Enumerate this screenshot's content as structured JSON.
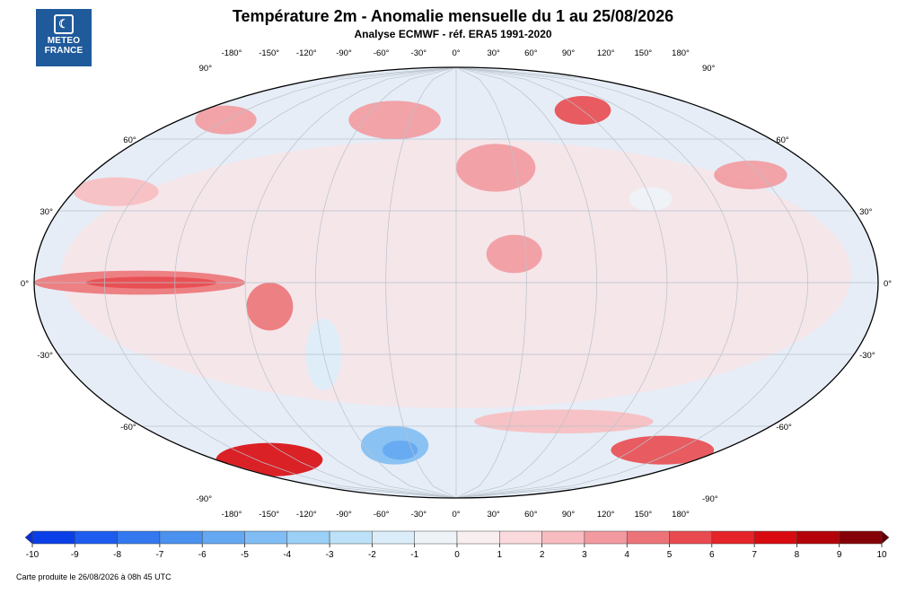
{
  "header": {
    "title": "Température 2m - Anomalie mensuelle du 1 au 25/08/2026",
    "subtitle": "Analyse ECMWF - réf. ERA5 1991-2020"
  },
  "logo": {
    "line1": "METEO",
    "line2": "FRANCE",
    "icon": "meteo-france-logo-icon"
  },
  "map": {
    "projection": "robinson-like elliptical world map",
    "lon_labels_top": [
      "-180°",
      "-150°",
      "-120°",
      "-90°",
      "-60°",
      "-30°",
      "0°",
      "30°",
      "60°",
      "90°",
      "120°",
      "150°",
      "180°"
    ],
    "lon_labels_bottom": [
      "-180°",
      "-150°",
      "-120°",
      "-90°",
      "-60°",
      "-30°",
      "0°",
      "30°",
      "60°",
      "90°",
      "120°",
      "150°",
      "180°"
    ],
    "lat_labels_left": [
      "90°",
      "60°",
      "30°",
      "0°",
      "-30°",
      "-60°",
      "-90°"
    ],
    "lat_labels_right": [
      "90°",
      "60°",
      "30°",
      "0°",
      "-30°",
      "-60°",
      "-90°"
    ],
    "lon_values": [
      -180,
      -150,
      -120,
      -90,
      -60,
      -30,
      0,
      30,
      60,
      90,
      120,
      150,
      180
    ],
    "lat_values": [
      90,
      60,
      30,
      0,
      -30,
      -60,
      -90
    ],
    "ocean_color": "#e6edf6",
    "anomaly_regions": [
      {
        "name": "east-pacific-warm",
        "lon": -135,
        "lat": 0,
        "rlon": 45,
        "rlat": 5,
        "level": 4
      },
      {
        "name": "east-pacific-core",
        "lon": -130,
        "lat": 0,
        "rlon": 28,
        "rlat": 2.5,
        "level": 5
      },
      {
        "name": "peru-coast-warm",
        "lon": -80,
        "lat": -10,
        "rlon": 10,
        "rlat": 10,
        "level": 4
      },
      {
        "name": "west-antarctic-warm",
        "lon": -140,
        "lat": -74,
        "rlon": 40,
        "rlat": 7,
        "level": 7
      },
      {
        "name": "east-antarctic-warm",
        "lon": 140,
        "lat": -70,
        "rlon": 35,
        "rlat": 6,
        "level": 5
      },
      {
        "name": "weddell-cold",
        "lon": -40,
        "lat": -68,
        "rlon": 22,
        "rlat": 8,
        "level": -5
      },
      {
        "name": "weddell-core",
        "lon": -38,
        "lat": -70,
        "rlon": 12,
        "rlat": 4,
        "level": -6
      },
      {
        "name": "siberia-warm",
        "lon": 90,
        "lat": 72,
        "rlon": 20,
        "rlat": 6,
        "level": 5
      },
      {
        "name": "europe-warm",
        "lon": 20,
        "lat": 48,
        "rlon": 20,
        "rlat": 10,
        "level": 3
      },
      {
        "name": "north-atlantic-warm",
        "lon": -40,
        "lat": 68,
        "rlon": 30,
        "rlat": 8,
        "level": 3
      },
      {
        "name": "alaska-warm",
        "lon": -150,
        "lat": 68,
        "rlon": 20,
        "rlat": 6,
        "level": 3
      },
      {
        "name": "north-pacific-warm",
        "lon": -160,
        "lat": 38,
        "rlon": 20,
        "rlat": 6,
        "level": 2
      },
      {
        "name": "sahel-warm",
        "lon": 25,
        "lat": 12,
        "rlon": 12,
        "rlat": 8,
        "level": 3
      },
      {
        "name": "south-america-cool",
        "lon": -60,
        "lat": -30,
        "rlon": 8,
        "rlat": 15,
        "level": -2
      },
      {
        "name": "tibet-cool",
        "lon": 90,
        "lat": 35,
        "rlon": 10,
        "rlat": 5,
        "level": -1
      },
      {
        "name": "east-asia-warm",
        "lon": 145,
        "lat": 45,
        "rlon": 18,
        "rlat": 6,
        "level": 3
      },
      {
        "name": "southern-ocean-warm",
        "lon": 60,
        "lat": -58,
        "rlon": 50,
        "rlat": 5,
        "level": 2
      }
    ]
  },
  "colorbar": {
    "tick_labels": [
      "-10",
      "-9",
      "-8",
      "-7",
      "-6",
      "-5",
      "-4",
      "-3",
      "-2",
      "-1",
      "0",
      "1",
      "2",
      "3",
      "4",
      "5",
      "6",
      "7",
      "8",
      "9",
      "10"
    ],
    "colors": [
      "#0a3fe8",
      "#1e5cf0",
      "#3478ef",
      "#4a91f0",
      "#64a8f2",
      "#7fbdf4",
      "#9bd0f6",
      "#bde1f8",
      "#dbedf9",
      "#eef3f8",
      "#f9eef0",
      "#fbdadd",
      "#f8bcc0",
      "#f29aa0",
      "#ec7478",
      "#e84a50",
      "#e42428",
      "#d80a10",
      "#b40008",
      "#840006"
    ]
  },
  "footer": {
    "text": "Carte produite le 26/08/2026 à 08h 45 UTC"
  }
}
